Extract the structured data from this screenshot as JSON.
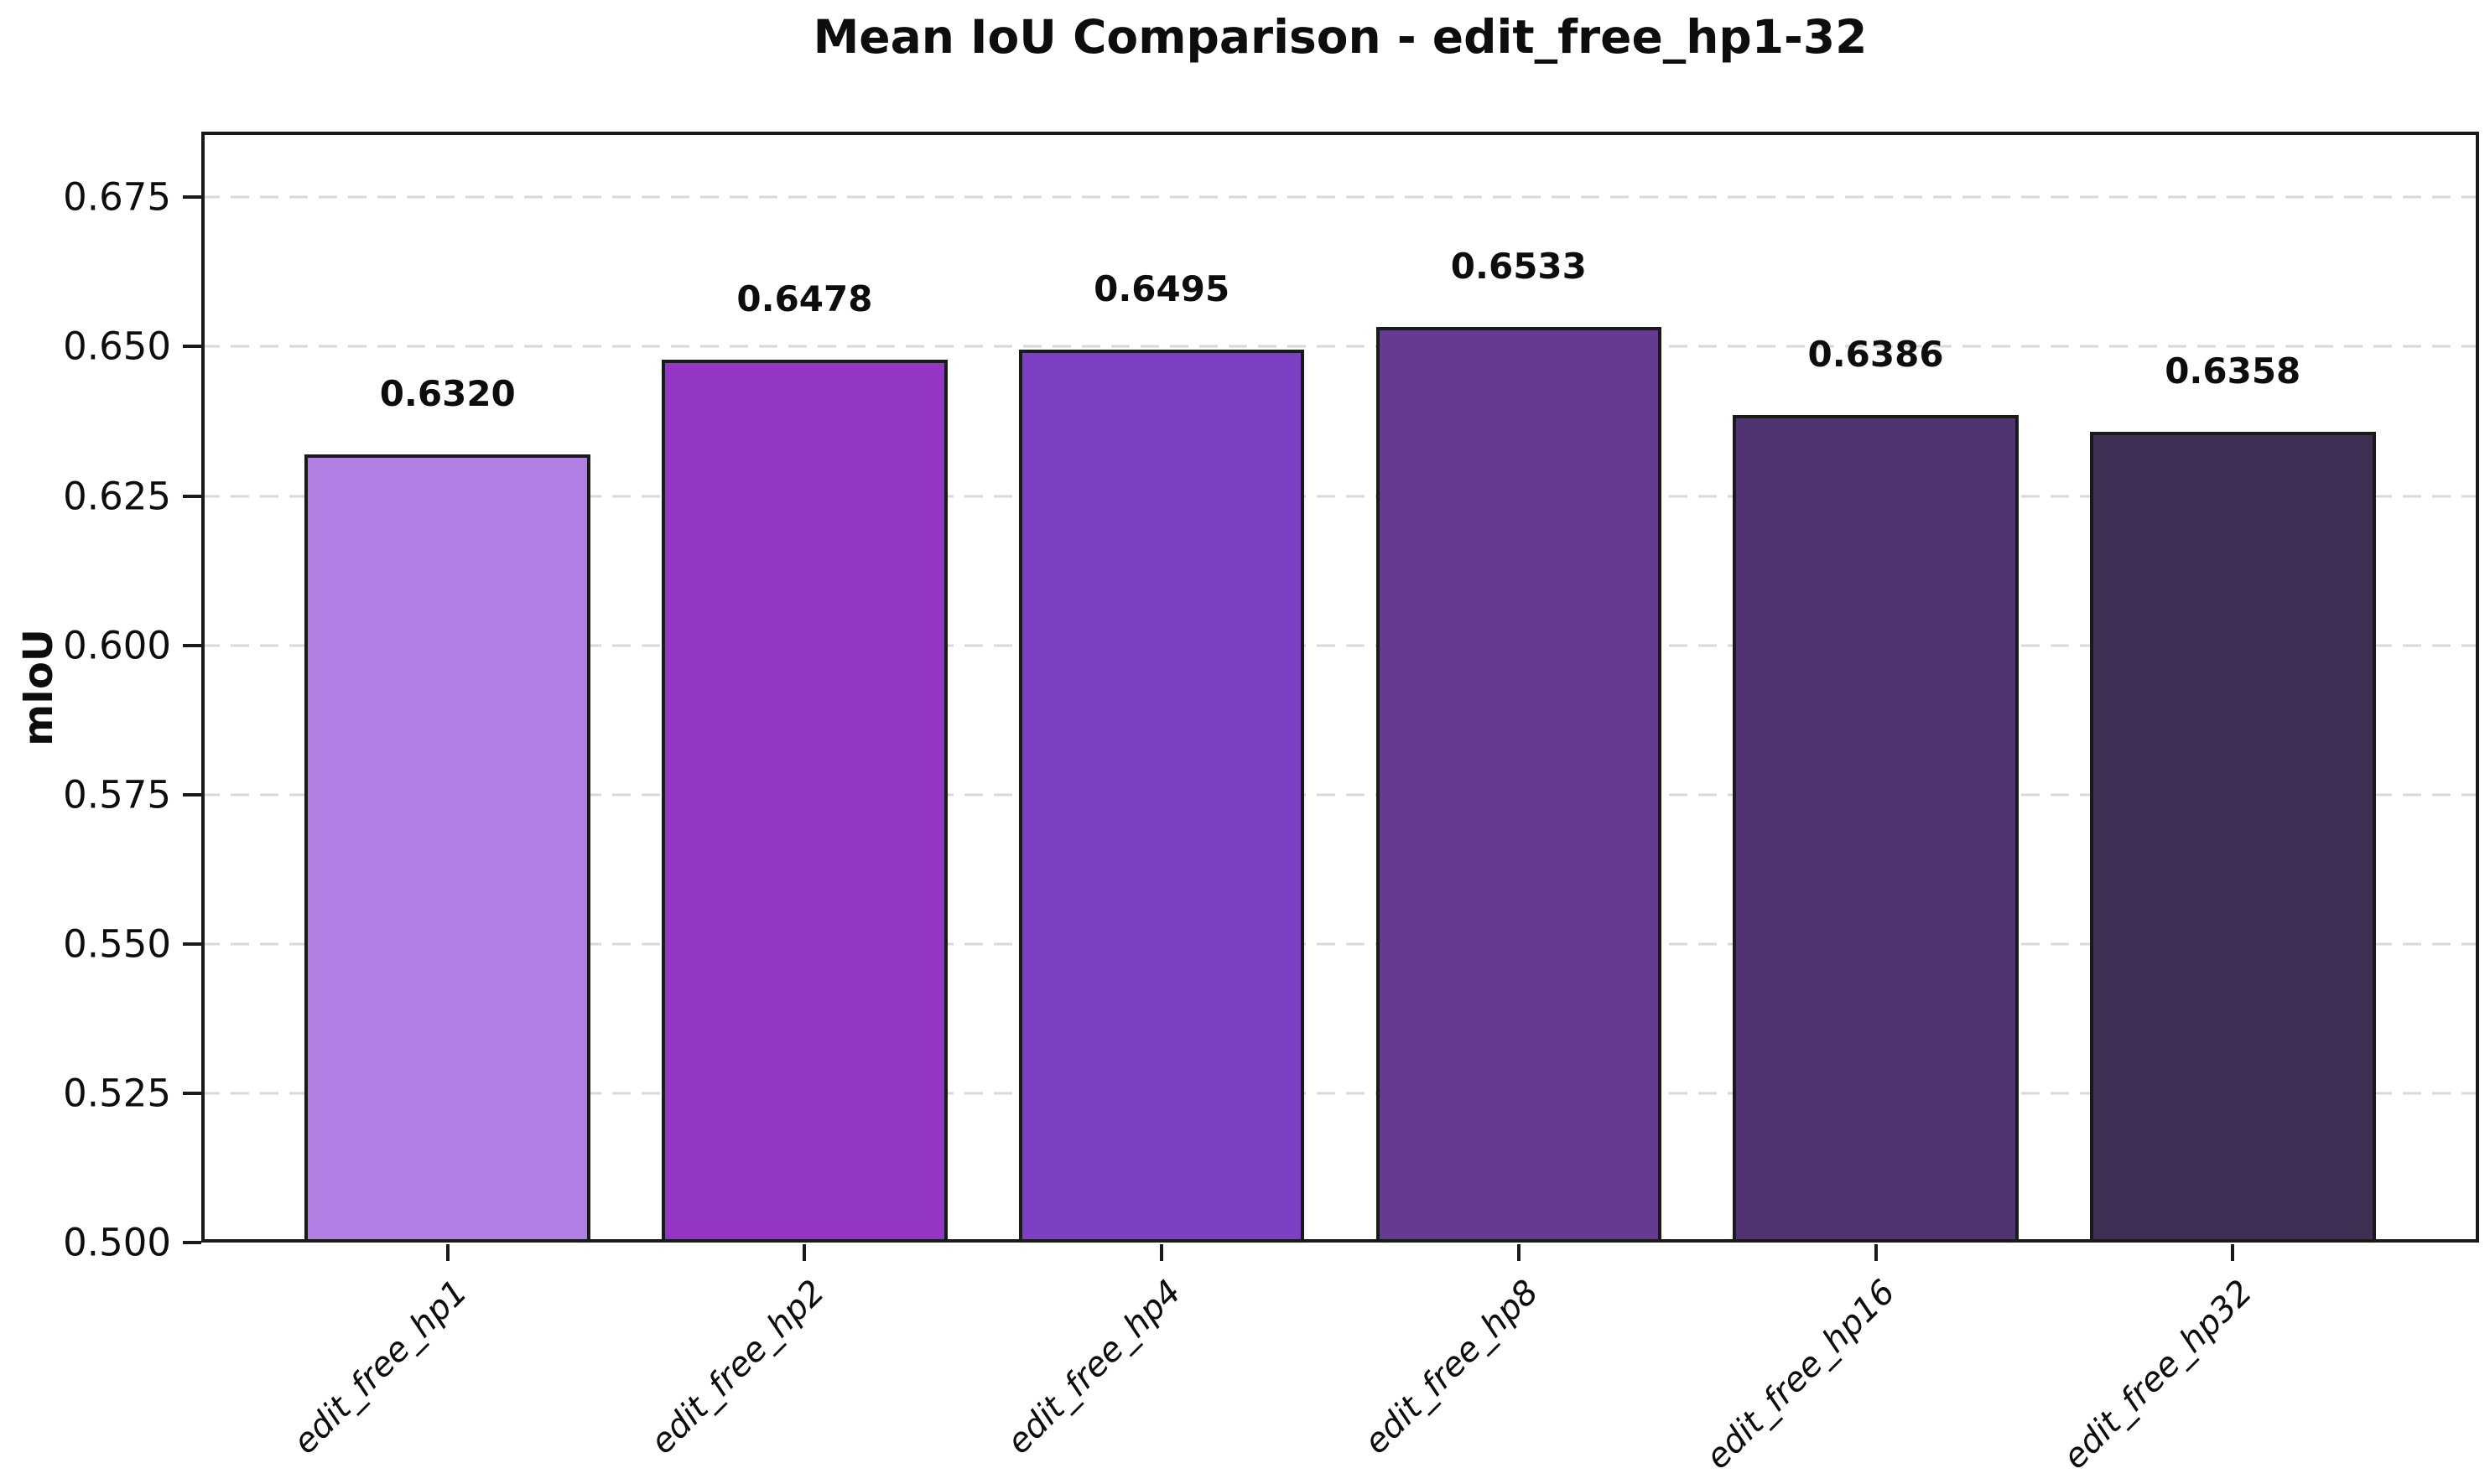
{
  "chart_data": {
    "type": "bar",
    "title": "Mean IoU Comparison - edit_free_hp1-32",
    "xlabel": "",
    "ylabel": "mIoU",
    "categories": [
      "edit_free_hp1",
      "edit_free_hp2",
      "edit_free_hp4",
      "edit_free_hp8",
      "edit_free_hp16",
      "edit_free_hp32"
    ],
    "values": [
      0.632,
      0.6478,
      0.6495,
      0.6533,
      0.6386,
      0.6358
    ],
    "value_labels": [
      "0.6320",
      "0.6478",
      "0.6495",
      "0.6533",
      "0.6386",
      "0.6358"
    ],
    "bar_colors": [
      "#b17ee3",
      "#9336c6",
      "#7b40c4",
      "#653b91",
      "#503471",
      "#402f55"
    ],
    "bar_edge_color": "#1a1a1a",
    "bar_width_fraction": 0.8,
    "ylim": [
      0.5,
      0.686
    ],
    "yticks": [
      0.5,
      0.525,
      0.55,
      0.575,
      0.6,
      0.625,
      0.65,
      0.675
    ],
    "ytick_labels": [
      "0.500",
      "0.525",
      "0.550",
      "0.575",
      "0.600",
      "0.625",
      "0.650",
      "0.675"
    ],
    "grid": {
      "axis": "y",
      "style": "dashed",
      "color": "#d9d9d9"
    },
    "legend": "none",
    "background": "#ffffff",
    "tick_label_style": "italic-rotated-45"
  }
}
